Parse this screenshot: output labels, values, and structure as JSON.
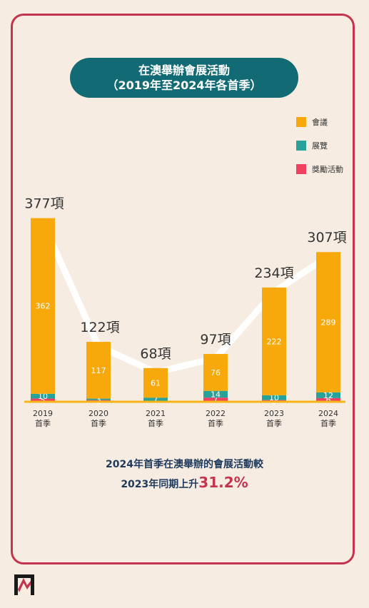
{
  "title": {
    "line1": "在澳舉辦會展活動",
    "line2": "（2019年至2024年各首季）"
  },
  "legend": [
    "會議",
    "展覽",
    "獎勵活動"
  ],
  "summary": {
    "line1": "2024年首季在澳舉辦的會展活動較",
    "line2_prefix": "2023年同期上升",
    "line2_highlight": "31.2%"
  },
  "colors": {
    "meeting": "#f7a90b",
    "exhibition": "#27a29b",
    "incentive": "#f0405f",
    "trend": "#ffffff",
    "baseline": "#f7b517"
  },
  "chart_data": {
    "type": "bar",
    "stacked": true,
    "categories": [
      [
        "2019",
        "首季"
      ],
      [
        "2020",
        "首季"
      ],
      [
        "2021",
        "首季"
      ],
      [
        "2022",
        "首季"
      ],
      [
        "2023",
        "首季"
      ],
      [
        "2024",
        "首季"
      ]
    ],
    "series": [
      {
        "name": "獎勵活動",
        "values": [
          5,
          2,
          0,
          7,
          2,
          6
        ]
      },
      {
        "name": "展覽",
        "values": [
          10,
          3,
          7,
          14,
          10,
          12
        ]
      },
      {
        "name": "會議",
        "values": [
          362,
          117,
          61,
          76,
          222,
          289
        ]
      }
    ],
    "totals": [
      377,
      122,
      68,
      97,
      234,
      307
    ],
    "total_labels": [
      "377項",
      "122項",
      "68項",
      "97項",
      "234項",
      "307項"
    ],
    "trend_line": "total",
    "legend_position": "top-right",
    "grid": false
  }
}
